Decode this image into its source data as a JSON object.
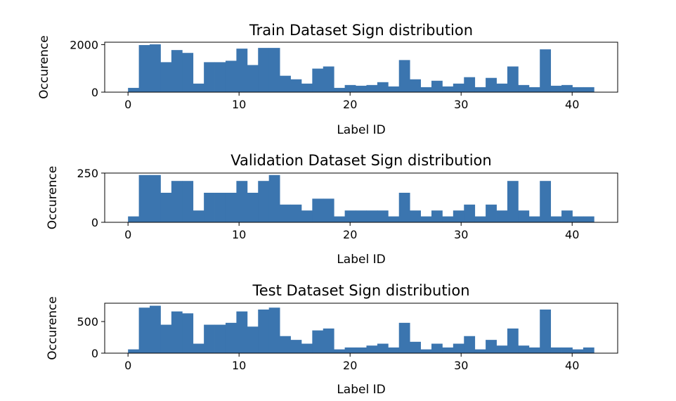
{
  "chart_data": [
    {
      "type": "bar",
      "title": "Train Dataset Sign distribution",
      "xlabel": "Label ID",
      "ylabel": "Occurence",
      "xlim": [
        -2.1,
        44.1
      ],
      "ylim": [
        0,
        2100
      ],
      "xticks": [
        0,
        10,
        20,
        30,
        40
      ],
      "yticks": [
        0,
        2000
      ],
      "bar_color": "#3b75af",
      "bin_edges_start": 0,
      "bin_width": 0.976,
      "values": [
        180,
        1980,
        2010,
        1260,
        1770,
        1650,
        360,
        1260,
        1260,
        1320,
        1830,
        1140,
        1860,
        1860,
        690,
        540,
        360,
        990,
        1080,
        180,
        300,
        270,
        300,
        420,
        240,
        1350,
        540,
        210,
        480,
        240,
        360,
        630,
        210,
        600,
        360,
        1080,
        300,
        210,
        1800,
        270,
        300,
        210,
        210
      ]
    },
    {
      "type": "bar",
      "title": "Validation Dataset Sign distribution",
      "xlabel": "Label ID",
      "ylabel": "Occurence",
      "xlim": [
        -2.1,
        44.1
      ],
      "ylim": [
        0,
        250
      ],
      "xticks": [
        0,
        10,
        20,
        30,
        40
      ],
      "yticks": [
        0,
        250
      ],
      "bar_color": "#3b75af",
      "bin_edges_start": 0,
      "bin_width": 0.976,
      "values": [
        30,
        240,
        240,
        150,
        210,
        210,
        60,
        150,
        150,
        150,
        210,
        150,
        210,
        240,
        90,
        90,
        60,
        120,
        120,
        30,
        60,
        60,
        60,
        60,
        30,
        150,
        60,
        30,
        60,
        30,
        60,
        90,
        30,
        90,
        60,
        210,
        60,
        30,
        210,
        30,
        60,
        30,
        30
      ]
    },
    {
      "type": "bar",
      "title": "Test Dataset Sign distribution",
      "xlabel": "Label ID",
      "ylabel": "Occurence",
      "xlim": [
        -2.1,
        44.1
      ],
      "ylim": [
        0,
        790
      ],
      "xticks": [
        0,
        10,
        20,
        30,
        40
      ],
      "yticks": [
        0,
        500
      ],
      "bar_color": "#3b75af",
      "bin_edges_start": 0,
      "bin_width": 0.976,
      "values": [
        60,
        720,
        750,
        450,
        660,
        630,
        150,
        450,
        450,
        480,
        660,
        420,
        690,
        720,
        270,
        210,
        150,
        360,
        390,
        60,
        90,
        90,
        120,
        150,
        90,
        480,
        180,
        60,
        150,
        90,
        150,
        270,
        60,
        210,
        120,
        390,
        120,
        90,
        690,
        90,
        90,
        60,
        90
      ]
    }
  ]
}
